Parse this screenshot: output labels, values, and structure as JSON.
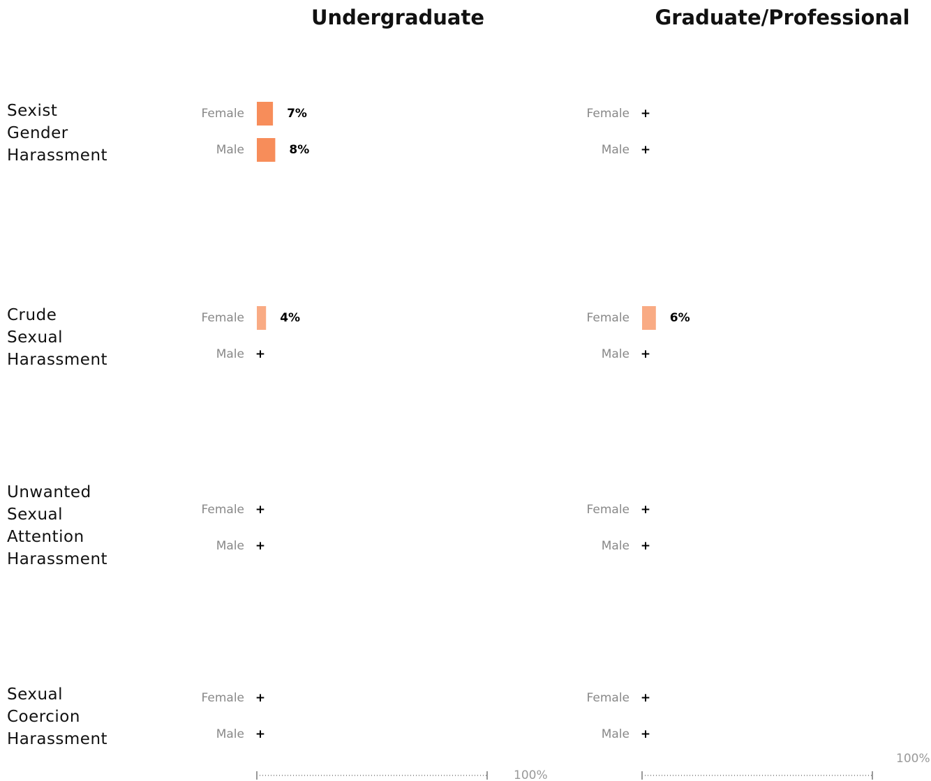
{
  "chart_data": {
    "type": "bar",
    "groups": [
      "Female",
      "Male"
    ],
    "rows": [
      "Sexist Gender Harassment",
      "Crude Sexual Harassment",
      "Unwanted Sexual Attention Harassment",
      "Sexual Coercion Harassment"
    ],
    "xlim": [
      0,
      100
    ],
    "xticks": [
      {
        "value": 100,
        "label": "100%"
      }
    ],
    "panels": [
      {
        "name": "Undergraduate",
        "series": [
          {
            "color": "#f78d5a",
            "values": [
              7,
              8
            ],
            "value_labels": [
              "7%",
              "8%"
            ]
          },
          {
            "color": "#f9ab84",
            "values": [
              4,
              null
            ],
            "value_labels": [
              "4%",
              "+"
            ]
          },
          {
            "color": "#f9ab84",
            "values": [
              null,
              null
            ],
            "value_labels": [
              "+",
              "+"
            ]
          },
          {
            "color": "#f9ab84",
            "values": [
              null,
              null
            ],
            "value_labels": [
              "+",
              "+"
            ]
          }
        ]
      },
      {
        "name": "Graduate/Professional",
        "series": [
          {
            "color": "#f78d5a",
            "values": [
              null,
              null
            ],
            "value_labels": [
              "+",
              "+"
            ]
          },
          {
            "color": "#f9ab84",
            "values": [
              6,
              null
            ],
            "value_labels": [
              "6%",
              "+"
            ]
          },
          {
            "color": "#f9ab84",
            "values": [
              null,
              null
            ],
            "value_labels": [
              "+",
              "+"
            ]
          },
          {
            "color": "#f9ab84",
            "values": [
              null,
              null
            ],
            "value_labels": [
              "+",
              "+"
            ]
          }
        ]
      }
    ]
  }
}
